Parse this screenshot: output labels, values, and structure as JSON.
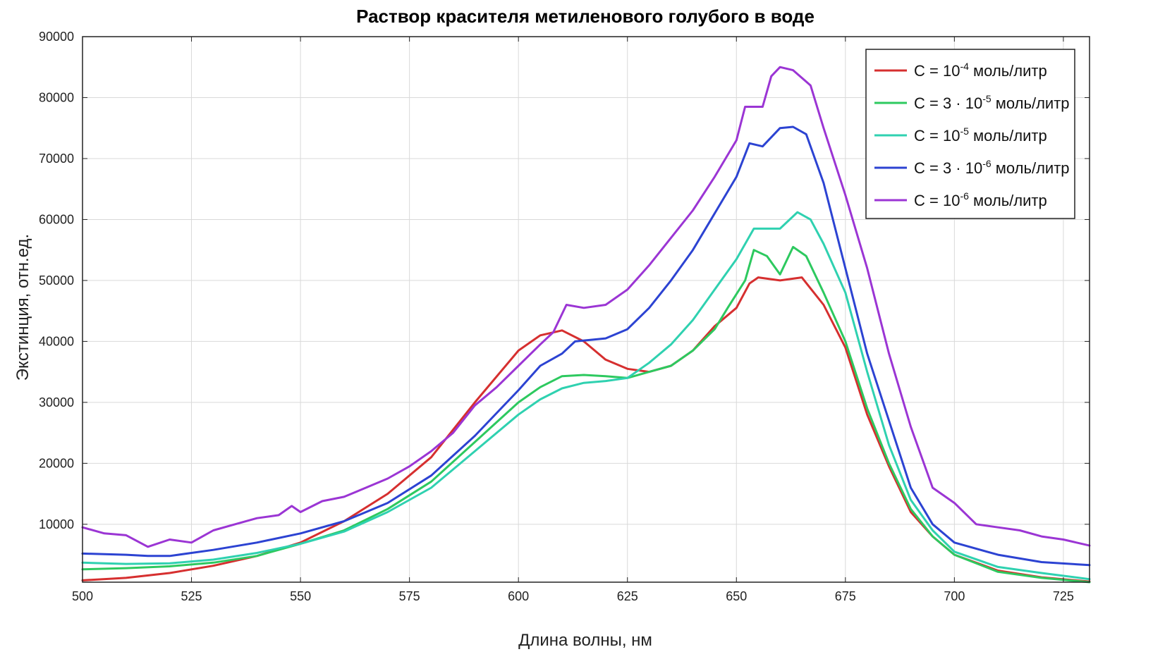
{
  "chart_data": {
    "type": "line",
    "title": "Раствор красителя метиленового голубого в воде",
    "xlabel": "Длина волны, нм",
    "ylabel": "Экстинция, отн.ед.",
    "xlim": [
      500,
      731
    ],
    "ylim": [
      500,
      90000
    ],
    "xticks": [
      500,
      525,
      550,
      575,
      600,
      625,
      650,
      675,
      700,
      725
    ],
    "yticks": [
      10000,
      20000,
      30000,
      40000,
      50000,
      60000,
      70000,
      80000,
      90000
    ],
    "grid": true,
    "legend_position": "top-right",
    "series": [
      {
        "name": "C = 10-4 моль/литр",
        "legend": {
          "pre": "C = 10",
          "sup": "-4",
          "post": " моль/литр"
        },
        "color": "#d62f2f",
        "points": [
          [
            500,
            800
          ],
          [
            510,
            1200
          ],
          [
            520,
            2000
          ],
          [
            530,
            3200
          ],
          [
            540,
            4800
          ],
          [
            550,
            7000
          ],
          [
            560,
            10500
          ],
          [
            570,
            15000
          ],
          [
            580,
            21000
          ],
          [
            590,
            30000
          ],
          [
            600,
            38500
          ],
          [
            605,
            41000
          ],
          [
            610,
            41800
          ],
          [
            615,
            40000
          ],
          [
            620,
            37000
          ],
          [
            625,
            35500
          ],
          [
            630,
            35000
          ],
          [
            635,
            36000
          ],
          [
            640,
            38500
          ],
          [
            645,
            42500
          ],
          [
            650,
            45500
          ],
          [
            653,
            49500
          ],
          [
            655,
            50500
          ],
          [
            660,
            50000
          ],
          [
            665,
            50500
          ],
          [
            670,
            46000
          ],
          [
            675,
            39000
          ],
          [
            680,
            28000
          ],
          [
            685,
            19500
          ],
          [
            690,
            12000
          ],
          [
            695,
            8000
          ],
          [
            700,
            5000
          ],
          [
            710,
            2400
          ],
          [
            720,
            1300
          ],
          [
            731,
            600
          ]
        ]
      },
      {
        "name": "C = 3 · 10-5 моль/литр",
        "legend": {
          "pre": "C = 3 · 10",
          "sup": "-5",
          "post": " моль/литр"
        },
        "color": "#2dc95f",
        "points": [
          [
            500,
            2600
          ],
          [
            510,
            2800
          ],
          [
            520,
            3100
          ],
          [
            530,
            3700
          ],
          [
            540,
            4800
          ],
          [
            550,
            6800
          ],
          [
            560,
            9000
          ],
          [
            570,
            12500
          ],
          [
            580,
            17000
          ],
          [
            590,
            23500
          ],
          [
            600,
            30000
          ],
          [
            605,
            32500
          ],
          [
            610,
            34300
          ],
          [
            615,
            34500
          ],
          [
            620,
            34300
          ],
          [
            625,
            34000
          ],
          [
            630,
            35000
          ],
          [
            635,
            36000
          ],
          [
            640,
            38500
          ],
          [
            645,
            42000
          ],
          [
            648,
            45500
          ],
          [
            652,
            50000
          ],
          [
            654,
            55000
          ],
          [
            657,
            54000
          ],
          [
            660,
            51000
          ],
          [
            663,
            55500
          ],
          [
            666,
            54000
          ],
          [
            670,
            48000
          ],
          [
            675,
            40000
          ],
          [
            680,
            29000
          ],
          [
            685,
            20000
          ],
          [
            690,
            12500
          ],
          [
            695,
            8000
          ],
          [
            700,
            5000
          ],
          [
            710,
            2200
          ],
          [
            720,
            1200
          ],
          [
            731,
            500
          ]
        ]
      },
      {
        "name": "C = 10-5 моль/литр",
        "legend": {
          "pre": "C = 10",
          "sup": "-5",
          "post": " моль/литр"
        },
        "color": "#2fd1b0",
        "points": [
          [
            500,
            3700
          ],
          [
            510,
            3500
          ],
          [
            520,
            3600
          ],
          [
            530,
            4200
          ],
          [
            540,
            5300
          ],
          [
            550,
            6800
          ],
          [
            560,
            8800
          ],
          [
            570,
            12000
          ],
          [
            580,
            16000
          ],
          [
            590,
            22000
          ],
          [
            600,
            28000
          ],
          [
            605,
            30500
          ],
          [
            610,
            32300
          ],
          [
            615,
            33200
          ],
          [
            620,
            33500
          ],
          [
            625,
            34000
          ],
          [
            630,
            36500
          ],
          [
            635,
            39500
          ],
          [
            640,
            43500
          ],
          [
            645,
            48500
          ],
          [
            650,
            53500
          ],
          [
            654,
            58500
          ],
          [
            657,
            58500
          ],
          [
            660,
            58500
          ],
          [
            664,
            61200
          ],
          [
            667,
            60000
          ],
          [
            670,
            56000
          ],
          [
            675,
            48000
          ],
          [
            680,
            35000
          ],
          [
            685,
            23000
          ],
          [
            690,
            14000
          ],
          [
            695,
            9000
          ],
          [
            700,
            5500
          ],
          [
            710,
            3000
          ],
          [
            720,
            2000
          ],
          [
            731,
            1000
          ]
        ]
      },
      {
        "name": "C = 3 · 10-6 моль/литр",
        "legend": {
          "pre": "C = 3 · 10",
          "sup": "-6",
          "post": " моль/литр"
        },
        "color": "#2c43d2",
        "points": [
          [
            500,
            5200
          ],
          [
            510,
            5000
          ],
          [
            515,
            4800
          ],
          [
            520,
            4800
          ],
          [
            530,
            5800
          ],
          [
            540,
            7000
          ],
          [
            550,
            8500
          ],
          [
            560,
            10500
          ],
          [
            570,
            13500
          ],
          [
            580,
            18000
          ],
          [
            590,
            24500
          ],
          [
            600,
            32000
          ],
          [
            605,
            36000
          ],
          [
            610,
            38000
          ],
          [
            613,
            40000
          ],
          [
            620,
            40500
          ],
          [
            625,
            42000
          ],
          [
            630,
            45500
          ],
          [
            635,
            50000
          ],
          [
            640,
            55000
          ],
          [
            645,
            61000
          ],
          [
            650,
            67000
          ],
          [
            653,
            72500
          ],
          [
            656,
            72000
          ],
          [
            660,
            75000
          ],
          [
            663,
            75200
          ],
          [
            666,
            74000
          ],
          [
            670,
            66000
          ],
          [
            675,
            52000
          ],
          [
            680,
            38000
          ],
          [
            685,
            27000
          ],
          [
            690,
            16000
          ],
          [
            695,
            10000
          ],
          [
            700,
            7000
          ],
          [
            710,
            5000
          ],
          [
            720,
            3800
          ],
          [
            731,
            3300
          ]
        ]
      },
      {
        "name": "C = 10-6 моль/литр",
        "legend": {
          "pre": "C = 10",
          "sup": "-6",
          "post": " моль/литр"
        },
        "color": "#9b35d4",
        "points": [
          [
            500,
            9500
          ],
          [
            505,
            8500
          ],
          [
            510,
            8200
          ],
          [
            515,
            6300
          ],
          [
            520,
            7500
          ],
          [
            525,
            7000
          ],
          [
            530,
            9000
          ],
          [
            535,
            10000
          ],
          [
            540,
            11000
          ],
          [
            545,
            11500
          ],
          [
            548,
            13000
          ],
          [
            550,
            12000
          ],
          [
            555,
            13800
          ],
          [
            560,
            14500
          ],
          [
            565,
            16000
          ],
          [
            570,
            17500
          ],
          [
            575,
            19500
          ],
          [
            580,
            22000
          ],
          [
            585,
            25000
          ],
          [
            590,
            29500
          ],
          [
            595,
            32500
          ],
          [
            600,
            36000
          ],
          [
            605,
            39500
          ],
          [
            608,
            41500
          ],
          [
            611,
            46000
          ],
          [
            615,
            45500
          ],
          [
            620,
            46000
          ],
          [
            625,
            48500
          ],
          [
            630,
            52500
          ],
          [
            635,
            57000
          ],
          [
            640,
            61500
          ],
          [
            645,
            67000
          ],
          [
            650,
            73000
          ],
          [
            652,
            78500
          ],
          [
            656,
            78500
          ],
          [
            658,
            83500
          ],
          [
            660,
            85000
          ],
          [
            663,
            84500
          ],
          [
            667,
            82000
          ],
          [
            670,
            75000
          ],
          [
            675,
            64000
          ],
          [
            680,
            52000
          ],
          [
            685,
            38000
          ],
          [
            690,
            26000
          ],
          [
            695,
            16000
          ],
          [
            700,
            13500
          ],
          [
            705,
            10000
          ],
          [
            710,
            9500
          ],
          [
            715,
            9000
          ],
          [
            720,
            8000
          ],
          [
            725,
            7500
          ],
          [
            731,
            6500
          ]
        ]
      }
    ]
  }
}
